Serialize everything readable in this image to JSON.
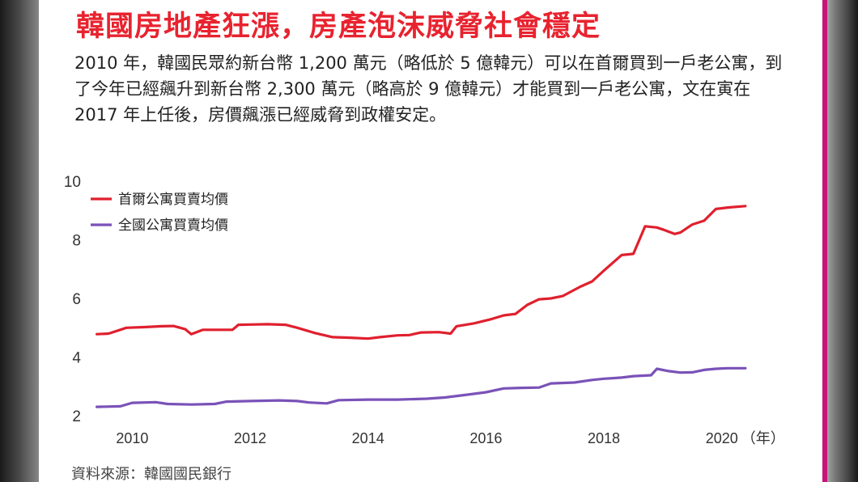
{
  "title": "韓國房地產狂漲，房產泡沫威脅社會穩定",
  "intro": "2010 年，韓國民眾約新台幣 1,200 萬元（略低於 5 億韓元）可以在首爾買到一戶老公寓，到了今年已經飆升到新台幣 2,300 萬元（略高於 9 億韓元）才能買到一戶老公寓，文在寅在 2017 年上任後，房價飆漲已經威脅到政權安定。",
  "source": "資料來源：韓國國民銀行",
  "colors": {
    "seoul": "#e0202e",
    "national": "#7a52b8",
    "title": "#e8232f",
    "accent": "#c8147a"
  },
  "chart_data": {
    "type": "line",
    "xlim": [
      2009.35,
      2020.8
    ],
    "ylim": [
      2,
      10
    ],
    "yticks": [
      2,
      4,
      6,
      8,
      10
    ],
    "xticks": [
      "2010",
      "2012",
      "2014",
      "2016",
      "2018",
      "2020"
    ],
    "x_unit": "（年）",
    "legend_position": "top-left",
    "series": [
      {
        "name": "首爾公寓買賣均價",
        "color": "#e0202e",
        "points": [
          [
            2009.4,
            4.78
          ],
          [
            2009.6,
            4.8
          ],
          [
            2009.9,
            5.0
          ],
          [
            2010.2,
            5.02
          ],
          [
            2010.5,
            5.05
          ],
          [
            2010.7,
            5.06
          ],
          [
            2010.9,
            4.95
          ],
          [
            2011.0,
            4.78
          ],
          [
            2011.2,
            4.93
          ],
          [
            2011.5,
            4.93
          ],
          [
            2011.7,
            4.93
          ],
          [
            2011.8,
            5.1
          ],
          [
            2012.0,
            5.11
          ],
          [
            2012.3,
            5.12
          ],
          [
            2012.6,
            5.1
          ],
          [
            2012.8,
            5.0
          ],
          [
            2013.1,
            4.82
          ],
          [
            2013.4,
            4.68
          ],
          [
            2013.7,
            4.66
          ],
          [
            2014.0,
            4.63
          ],
          [
            2014.2,
            4.68
          ],
          [
            2014.5,
            4.74
          ],
          [
            2014.7,
            4.75
          ],
          [
            2014.9,
            4.84
          ],
          [
            2015.2,
            4.85
          ],
          [
            2015.4,
            4.8
          ],
          [
            2015.5,
            5.05
          ],
          [
            2015.8,
            5.15
          ],
          [
            2016.1,
            5.3
          ],
          [
            2016.3,
            5.42
          ],
          [
            2016.5,
            5.47
          ],
          [
            2016.7,
            5.78
          ],
          [
            2016.9,
            5.97
          ],
          [
            2017.1,
            6.0
          ],
          [
            2017.3,
            6.08
          ],
          [
            2017.6,
            6.4
          ],
          [
            2017.8,
            6.58
          ],
          [
            2018.0,
            6.95
          ],
          [
            2018.3,
            7.48
          ],
          [
            2018.5,
            7.52
          ],
          [
            2018.7,
            8.46
          ],
          [
            2018.9,
            8.42
          ],
          [
            2019.0,
            8.35
          ],
          [
            2019.2,
            8.2
          ],
          [
            2019.3,
            8.25
          ],
          [
            2019.5,
            8.52
          ],
          [
            2019.7,
            8.65
          ],
          [
            2019.9,
            9.05
          ],
          [
            2020.1,
            9.1
          ],
          [
            2020.4,
            9.15
          ]
        ]
      },
      {
        "name": "全國公寓買賣均價",
        "color": "#7a52b8",
        "points": [
          [
            2009.4,
            2.3
          ],
          [
            2009.8,
            2.32
          ],
          [
            2010.0,
            2.44
          ],
          [
            2010.4,
            2.46
          ],
          [
            2010.6,
            2.4
          ],
          [
            2011.0,
            2.38
          ],
          [
            2011.4,
            2.4
          ],
          [
            2011.6,
            2.48
          ],
          [
            2012.0,
            2.5
          ],
          [
            2012.5,
            2.52
          ],
          [
            2012.8,
            2.5
          ],
          [
            2013.0,
            2.45
          ],
          [
            2013.3,
            2.42
          ],
          [
            2013.5,
            2.53
          ],
          [
            2014.0,
            2.55
          ],
          [
            2014.5,
            2.55
          ],
          [
            2015.0,
            2.58
          ],
          [
            2015.3,
            2.62
          ],
          [
            2015.7,
            2.72
          ],
          [
            2016.0,
            2.8
          ],
          [
            2016.3,
            2.93
          ],
          [
            2016.6,
            2.95
          ],
          [
            2016.9,
            2.96
          ],
          [
            2017.1,
            3.1
          ],
          [
            2017.5,
            3.13
          ],
          [
            2017.8,
            3.22
          ],
          [
            2018.0,
            3.26
          ],
          [
            2018.3,
            3.3
          ],
          [
            2018.5,
            3.35
          ],
          [
            2018.8,
            3.38
          ],
          [
            2018.9,
            3.6
          ],
          [
            2019.1,
            3.52
          ],
          [
            2019.3,
            3.47
          ],
          [
            2019.5,
            3.48
          ],
          [
            2019.7,
            3.56
          ],
          [
            2019.9,
            3.6
          ],
          [
            2020.1,
            3.62
          ],
          [
            2020.4,
            3.62
          ]
        ]
      }
    ]
  }
}
